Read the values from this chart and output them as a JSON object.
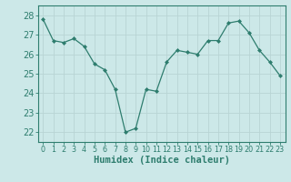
{
  "xlabel": "Humidex (Indice chaleur)",
  "x_values": [
    0,
    1,
    2,
    3,
    4,
    5,
    6,
    7,
    8,
    9,
    10,
    11,
    12,
    13,
    14,
    15,
    16,
    17,
    18,
    19,
    20,
    21,
    22,
    23
  ],
  "y_values": [
    27.8,
    26.7,
    26.6,
    26.8,
    26.4,
    25.5,
    25.2,
    24.2,
    22.0,
    22.2,
    24.2,
    24.1,
    25.6,
    26.2,
    26.1,
    26.0,
    26.7,
    26.7,
    27.6,
    27.7,
    27.1,
    26.2,
    25.6,
    24.9
  ],
  "ylim": [
    21.5,
    28.5
  ],
  "xlim": [
    -0.5,
    23.5
  ],
  "yticks": [
    22,
    23,
    24,
    25,
    26,
    27,
    28
  ],
  "xticks": [
    0,
    1,
    2,
    3,
    4,
    5,
    6,
    7,
    8,
    9,
    10,
    11,
    12,
    13,
    14,
    15,
    16,
    17,
    18,
    19,
    20,
    21,
    22,
    23
  ],
  "line_color": "#2e7d6e",
  "marker_color": "#2e7d6e",
  "bg_color": "#cce8e8",
  "grid_color": "#b8d4d4",
  "axis_color": "#2e7d6e",
  "tick_label_color": "#2e7d6e",
  "xlabel_color": "#2e7d6e",
  "xlabel_fontsize": 7.5,
  "ytick_fontsize": 7,
  "xtick_fontsize": 5.8
}
